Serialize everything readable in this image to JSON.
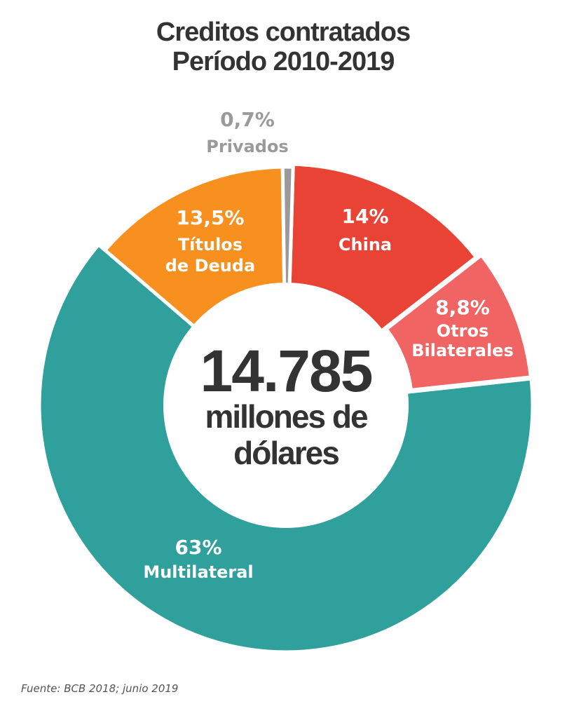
{
  "chart_data": {
    "type": "pie",
    "donut": true,
    "title": "Creditos contratados",
    "subtitle": "Período 2010-2019",
    "center_value": "14.785",
    "center_unit_line1": "millones de",
    "center_unit_line2": "dólares",
    "slices": [
      {
        "name": "China",
        "value": 14,
        "label": "14%",
        "color": "#E94335"
      },
      {
        "name": "Otros Bilaterales",
        "name1": "Otros",
        "name2": "Bilaterales",
        "value": 8.8,
        "label": "8,8%",
        "color": "#F06464"
      },
      {
        "name": "Multilateral",
        "value": 63,
        "label": "63%",
        "color": "#2FA09C"
      },
      {
        "name": "Títulos de Deuda",
        "name1": "Títulos",
        "name2": "de Deuda",
        "value": 13.5,
        "label": "13,5%",
        "color": "#F7901E"
      },
      {
        "name": "Privados",
        "value": 0.7,
        "label": "0,7%",
        "color": "#9A9A9A"
      }
    ],
    "source": "Fuente: BCB 2018; junio 2019"
  }
}
